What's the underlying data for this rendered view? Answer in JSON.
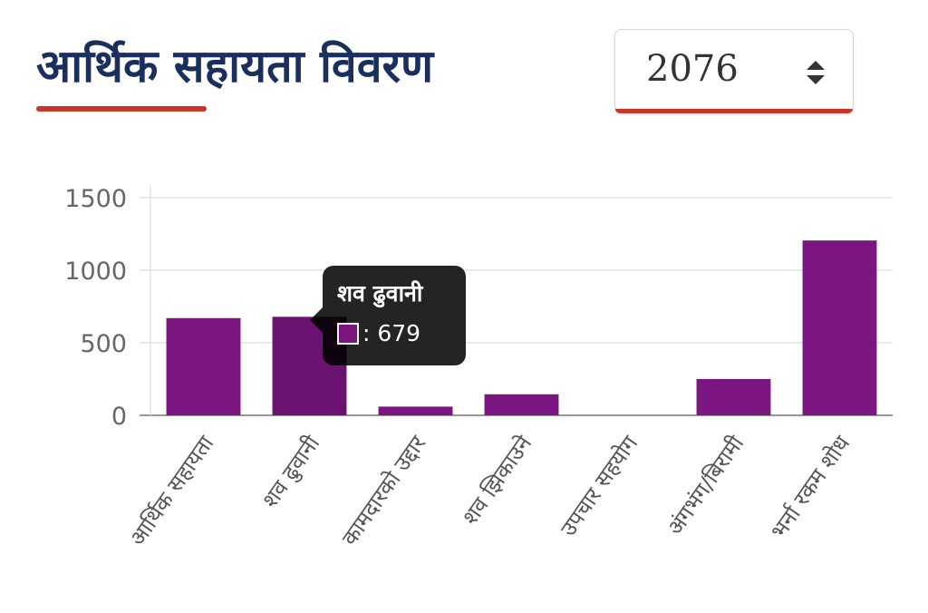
{
  "header": {
    "title": "आर्थिक सहायता विवरण"
  },
  "year_select": {
    "value": "2076",
    "icon": "sort-icon"
  },
  "colors": {
    "bar": "#7b1680",
    "bar_highlight": "#6a1370",
    "accent": "#c8352b",
    "title": "#1b2f5e"
  },
  "tooltip": {
    "title": "शव ढुवानी",
    "value_text": ": 679"
  },
  "chart_data": {
    "type": "bar",
    "categories": [
      "आर्थिक सहायता",
      "शव ढुवानी",
      "कामदारको उद्दार",
      "शव झिकाउने",
      "उपचार सहयोग",
      "अंगभंग/बिरामी",
      "भर्ना रकम शोध"
    ],
    "values": [
      670,
      679,
      60,
      145,
      0,
      250,
      1205
    ],
    "yticks": [
      "0",
      "500",
      "1000",
      "1500"
    ],
    "ylim": [
      0,
      1500
    ],
    "grid": true,
    "highlighted_index": 1
  }
}
